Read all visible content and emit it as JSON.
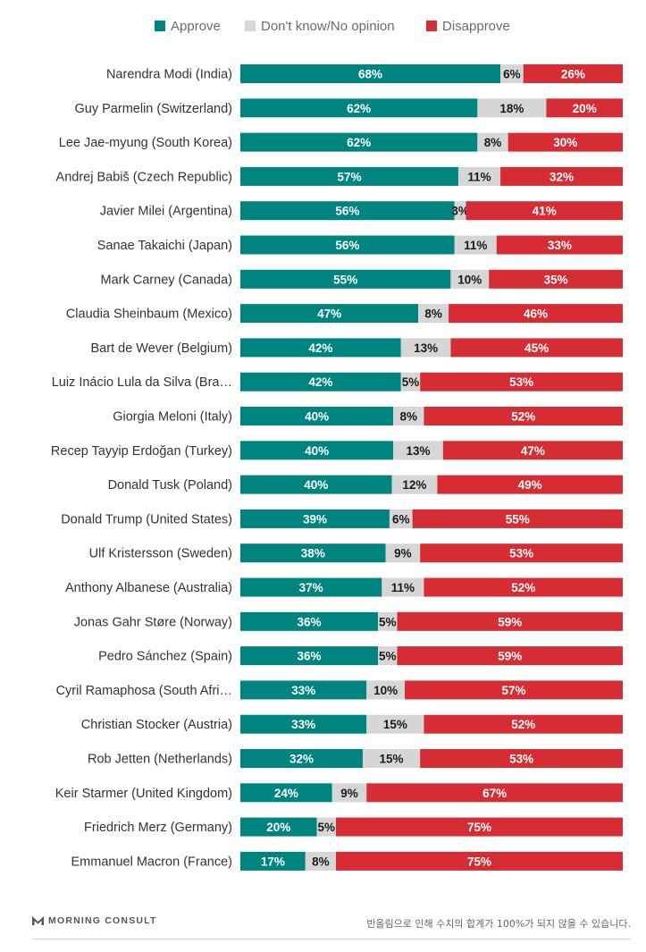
{
  "chart_data": {
    "type": "bar",
    "orientation": "horizontal",
    "stacked": true,
    "legend": [
      {
        "label": "Approve",
        "color": "#00847f"
      },
      {
        "label": "Don't know/No opinion",
        "color": "#d6d6d6"
      },
      {
        "label": "Disapprove",
        "color": "#d62d34"
      }
    ],
    "categories": [
      "Narendra Modi (India)",
      "Guy Parmelin (Switzerland)",
      "Lee Jae-myung (South Korea)",
      "Andrej Babiš (Czech Republic)",
      "Javier Milei (Argentina)",
      "Sanae Takaichi (Japan)",
      "Mark Carney (Canada)",
      "Claudia Sheinbaum (Mexico)",
      "Bart de Wever (Belgium)",
      "Luiz Inácio Lula da Silva (Bra…",
      "Giorgia Meloni (Italy)",
      "Recep Tayyip Erdoğan (Turkey)",
      "Donald Tusk (Poland)",
      "Donald Trump (United States)",
      "Ulf Kristersson (Sweden)",
      "Anthony Albanese (Australia)",
      "Jonas Gahr Støre (Norway)",
      "Pedro Sánchez (Spain)",
      "Cyril Ramaphosa (South Afri…",
      "Christian Stocker (Austria)",
      "Rob Jetten (Netherlands)",
      "Keir Starmer (United Kingdom)",
      "Friedrich Merz (Germany)",
      "Emmanuel Macron (France)"
    ],
    "series": [
      {
        "name": "Approve",
        "values": [
          68,
          62,
          62,
          57,
          56,
          56,
          55,
          47,
          42,
          42,
          40,
          40,
          40,
          39,
          38,
          37,
          36,
          36,
          33,
          33,
          32,
          24,
          20,
          17
        ]
      },
      {
        "name": "Don't know/No opinion",
        "values": [
          6,
          18,
          8,
          11,
          3,
          11,
          10,
          8,
          13,
          5,
          8,
          13,
          12,
          6,
          9,
          11,
          5,
          5,
          10,
          15,
          15,
          9,
          5,
          8
        ]
      },
      {
        "name": "Disapprove",
        "values": [
          26,
          20,
          30,
          32,
          41,
          33,
          35,
          46,
          45,
          53,
          52,
          47,
          49,
          55,
          53,
          52,
          59,
          59,
          57,
          52,
          53,
          67,
          75,
          75
        ]
      }
    ],
    "value_suffix": "%"
  },
  "footer": {
    "brand": "MORNING CONSULT",
    "note": "반올림으로 인해 수치의 합계가 100%가 되지 않을 수 있습니다."
  }
}
